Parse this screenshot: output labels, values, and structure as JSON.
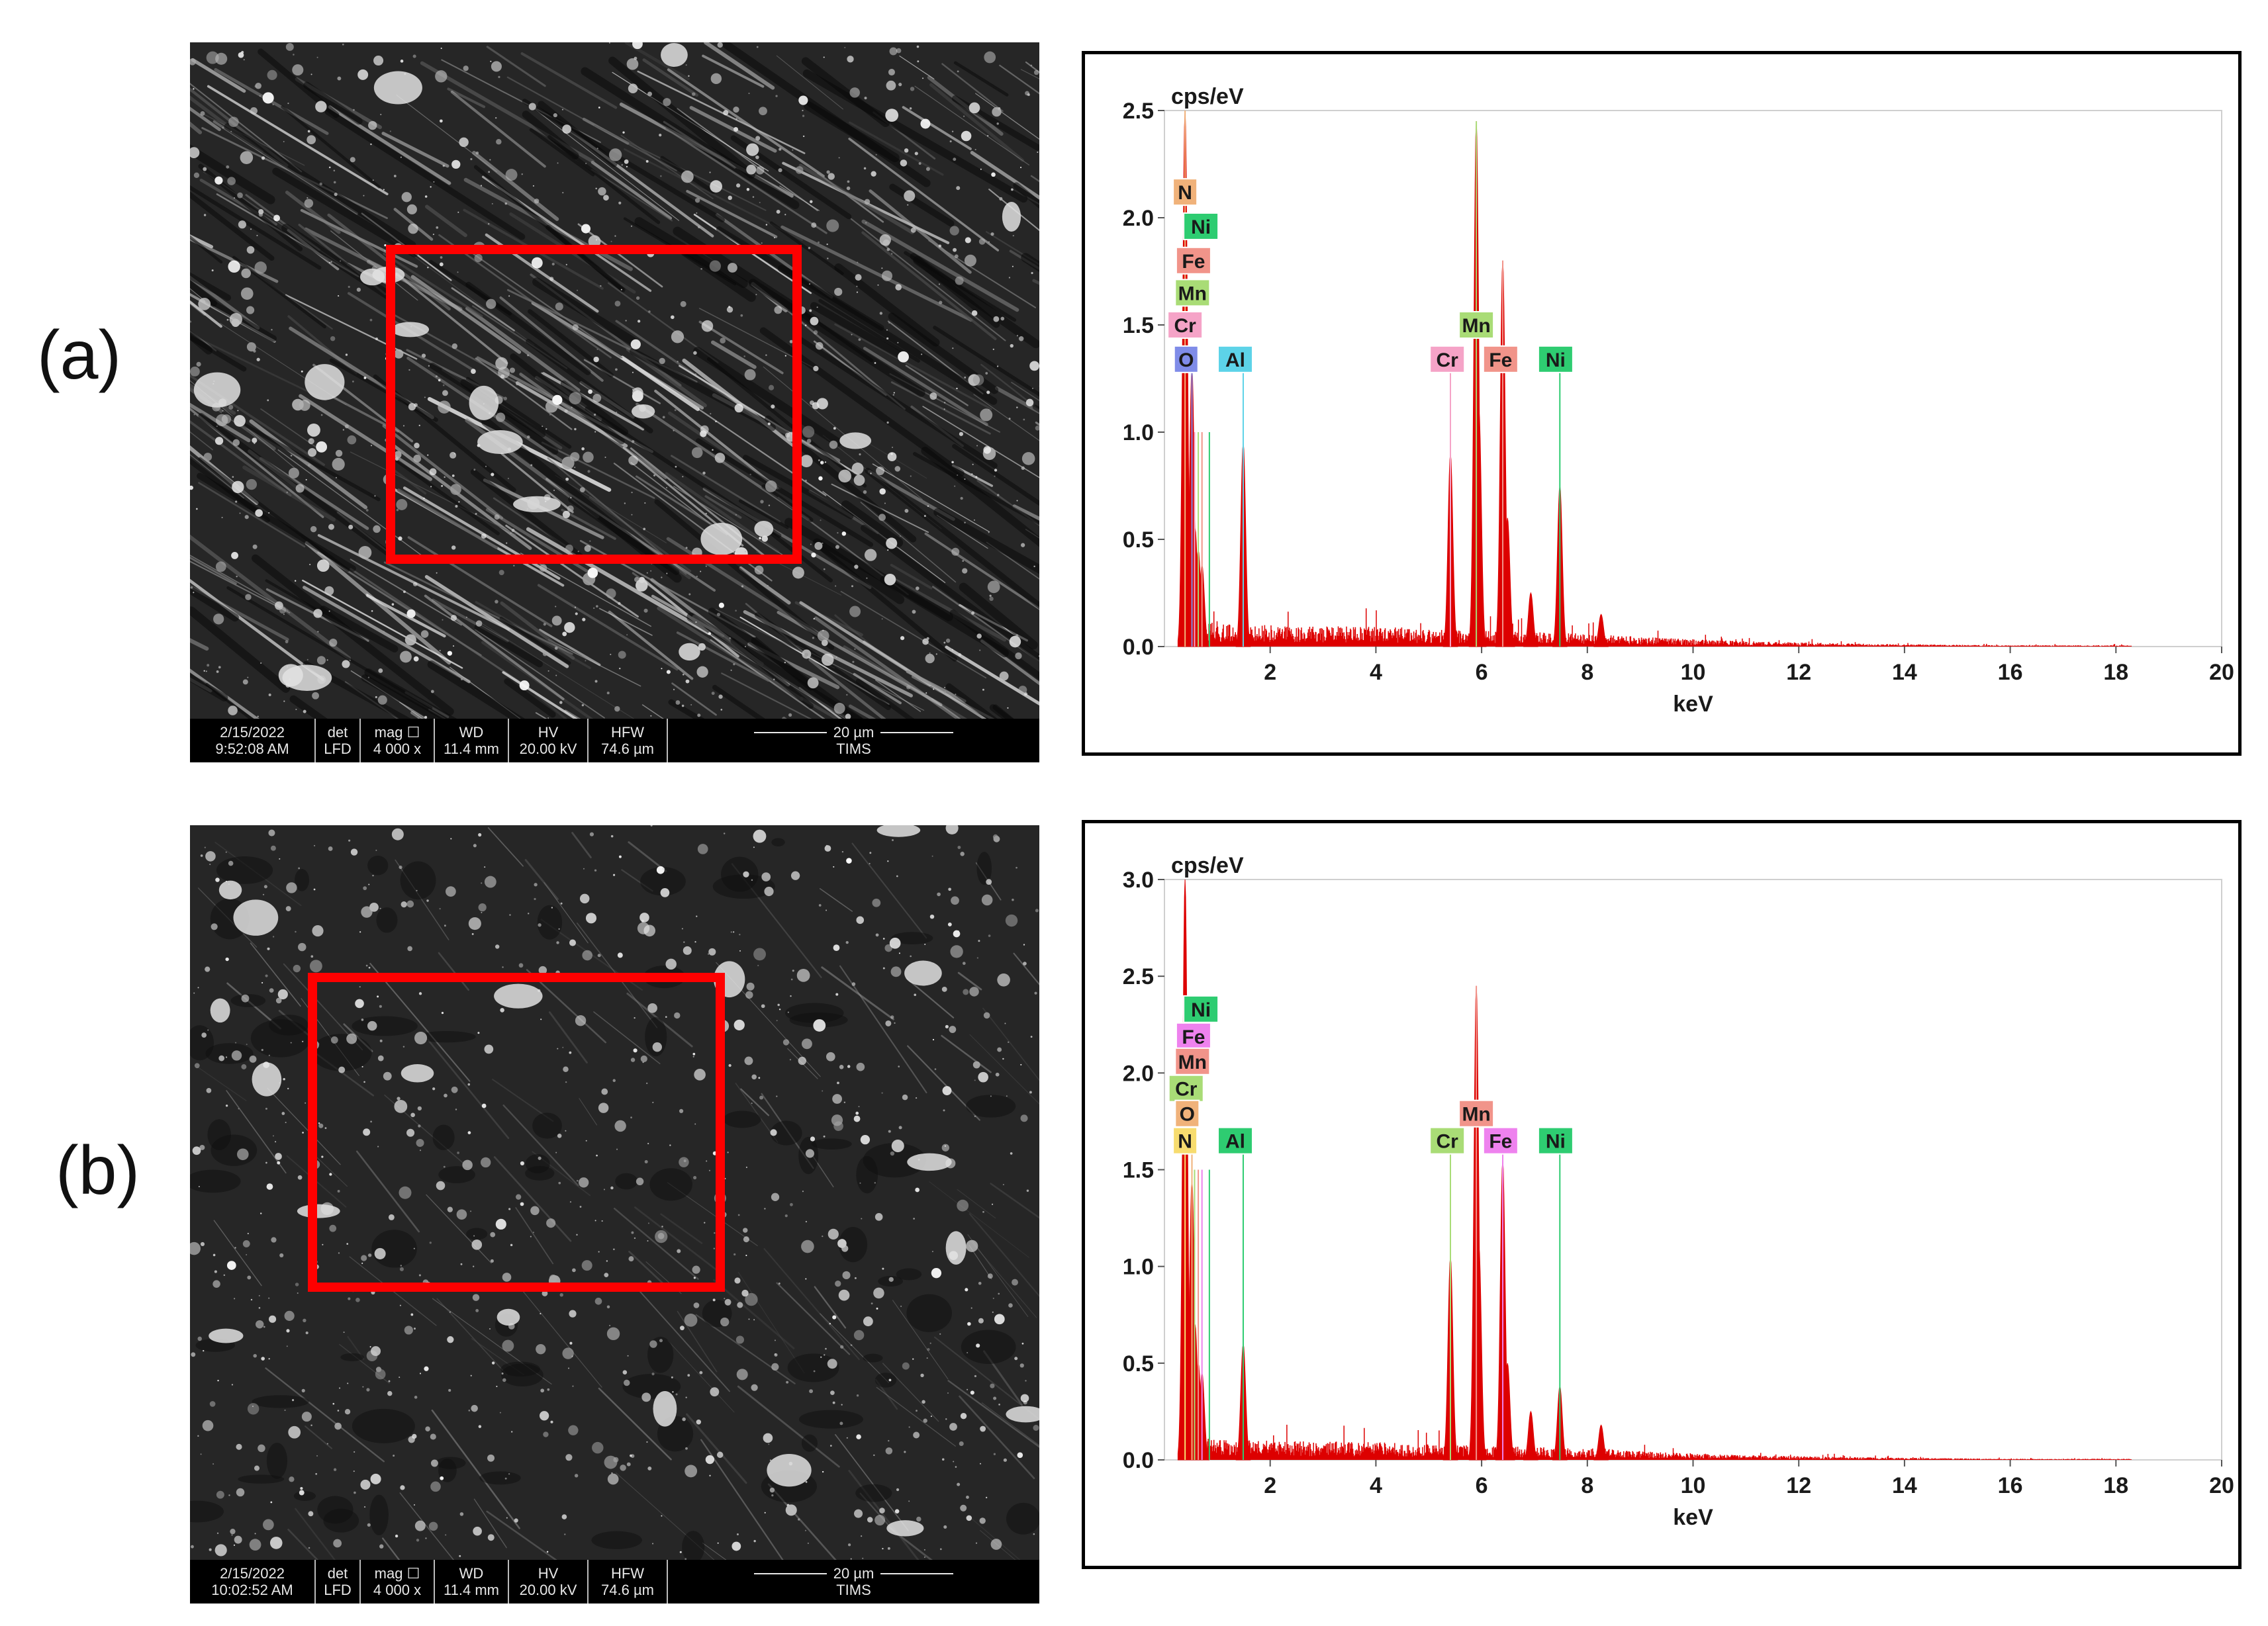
{
  "panels": [
    {
      "label": "(a)",
      "sem": {
        "bar_date": "2/15/2022",
        "bar_time": "9:52:08 AM",
        "bar_det_head": "det",
        "bar_det": "LFD",
        "bar_mag_head": "mag ☐",
        "bar_mag": "4 000 x",
        "bar_wd_head": "WD",
        "bar_wd": "11.4 mm",
        "bar_hv_head": "HV",
        "bar_hv": "20.00 kV",
        "bar_hfw_head": "HFW",
        "bar_hfw": "74.6 µm",
        "bar_scale": "20 µm",
        "bar_lab": "TIMS"
      }
    },
    {
      "label": "(b)",
      "sem": {
        "bar_date": "2/15/2022",
        "bar_time": "10:02:52 AM",
        "bar_det_head": "det",
        "bar_det": "LFD",
        "bar_mag_head": "mag ☐",
        "bar_mag": "4 000 x",
        "bar_wd_head": "WD",
        "bar_wd": "11.4 mm",
        "bar_hv_head": "HV",
        "bar_hv": "20.00 kV",
        "bar_hfw_head": "HFW",
        "bar_hfw": "74.6 µm",
        "bar_scale": "20 µm",
        "bar_lab": "TIMS"
      }
    }
  ],
  "chart_data": [
    {
      "type": "line",
      "ylabel": "cps/eV",
      "xlabel": "keV",
      "xlim": [
        0,
        20
      ],
      "ylim": [
        0,
        2.5
      ],
      "xticks": [
        2,
        4,
        6,
        8,
        10,
        12,
        14,
        16,
        18,
        20
      ],
      "xtick_labels": [
        "2",
        "4",
        "6",
        "8",
        "10",
        "12",
        "14",
        "16",
        "18",
        "20"
      ],
      "yticks": [
        0,
        0.5,
        1.0,
        1.5,
        2.0,
        2.5
      ],
      "ytick_labels": [
        "0.0",
        "0.5",
        "1.0",
        "1.5",
        "2.0",
        "2.5"
      ],
      "series_color": "#dd0000",
      "peaks": [
        {
          "x": 0.39,
          "y": 2.5
        },
        {
          "x": 0.52,
          "y": 1.3
        },
        {
          "x": 0.58,
          "y": 0.55
        },
        {
          "x": 0.64,
          "y": 0.45
        },
        {
          "x": 0.71,
          "y": 0.38
        },
        {
          "x": 1.49,
          "y": 0.95
        },
        {
          "x": 5.41,
          "y": 0.9
        },
        {
          "x": 5.9,
          "y": 2.45
        },
        {
          "x": 5.95,
          "y": 1.1
        },
        {
          "x": 6.4,
          "y": 1.8
        },
        {
          "x": 6.49,
          "y": 0.6
        },
        {
          "x": 6.93,
          "y": 0.25
        },
        {
          "x": 7.48,
          "y": 0.75
        },
        {
          "x": 8.26,
          "y": 0.15
        }
      ],
      "element_lines": [
        {
          "symbol": "N",
          "x": 0.39,
          "line_top": 2.5,
          "color": "#f0b27a"
        },
        {
          "symbol": "Ni",
          "x": 0.85,
          "line_top": 1.0,
          "color": "#2ecc71"
        },
        {
          "symbol": "Fe",
          "x": 0.71,
          "line_top": 1.0,
          "color": "#f1948a"
        },
        {
          "symbol": "Mn",
          "x": 0.64,
          "line_top": 1.0,
          "color": "#a9dc76"
        },
        {
          "symbol": "Cr",
          "x": 0.57,
          "line_top": 1.0,
          "color": "#f5a3c7"
        },
        {
          "symbol": "O",
          "x": 0.52,
          "line_top": 1.3,
          "color": "#7f8ce8"
        },
        {
          "symbol": "Al",
          "x": 1.49,
          "line_top": 1.3,
          "color": "#5dd3e8"
        },
        {
          "symbol": "Mn",
          "x": 5.9,
          "line_top": 2.45,
          "color": "#a9dc76"
        },
        {
          "symbol": "Cr",
          "x": 5.41,
          "line_top": 1.3,
          "color": "#f5a3c7"
        },
        {
          "symbol": "Fe",
          "x": 6.4,
          "line_top": 1.8,
          "color": "#f1948a"
        },
        {
          "symbol": "Ni",
          "x": 7.48,
          "line_top": 1.3,
          "color": "#2ecc71"
        }
      ],
      "label_stack": [
        {
          "symbol": "N",
          "x": 0.39,
          "y": 2.12,
          "color": "#f0b27a"
        },
        {
          "symbol": "Ni",
          "x": 0.69,
          "y": 1.96,
          "color": "#2ecc71"
        },
        {
          "symbol": "Fe",
          "x": 0.55,
          "y": 1.8,
          "color": "#f1948a"
        },
        {
          "symbol": "Mn",
          "x": 0.53,
          "y": 1.65,
          "color": "#a9dc76"
        },
        {
          "symbol": "Cr",
          "x": 0.39,
          "y": 1.5,
          "color": "#f5a3c7"
        },
        {
          "symbol": "O",
          "x": 0.41,
          "y": 1.34,
          "color": "#7f8ce8"
        },
        {
          "symbol": "Al",
          "x": 1.34,
          "y": 1.34,
          "color": "#5dd3e8"
        },
        {
          "symbol": "Mn",
          "x": 5.9,
          "y": 1.5,
          "color": "#a9dc76"
        },
        {
          "symbol": "Cr",
          "x": 5.35,
          "y": 1.34,
          "color": "#f5a3c7"
        },
        {
          "symbol": "Fe",
          "x": 6.36,
          "y": 1.34,
          "color": "#f1948a"
        },
        {
          "symbol": "Ni",
          "x": 7.4,
          "y": 1.34,
          "color": "#2ecc71"
        }
      ]
    },
    {
      "type": "line",
      "ylabel": "cps/eV",
      "xlabel": "keV",
      "xlim": [
        0,
        20
      ],
      "ylim": [
        0,
        3.0
      ],
      "xticks": [
        2,
        4,
        6,
        8,
        10,
        12,
        14,
        16,
        18,
        20
      ],
      "xtick_labels": [
        "2",
        "4",
        "6",
        "8",
        "10",
        "12",
        "14",
        "16",
        "18",
        "20"
      ],
      "yticks": [
        0,
        0.5,
        1.0,
        1.5,
        2.0,
        2.5,
        3.0
      ],
      "ytick_labels": [
        "0.0",
        "0.5",
        "1.0",
        "1.5",
        "2.0",
        "2.5",
        "3.0"
      ],
      "series_color": "#dd0000",
      "peaks": [
        {
          "x": 0.39,
          "y": 3.0
        },
        {
          "x": 0.52,
          "y": 1.45
        },
        {
          "x": 0.58,
          "y": 0.7
        },
        {
          "x": 0.64,
          "y": 0.5
        },
        {
          "x": 0.71,
          "y": 0.45
        },
        {
          "x": 1.49,
          "y": 0.6
        },
        {
          "x": 5.41,
          "y": 1.05
        },
        {
          "x": 5.9,
          "y": 2.45
        },
        {
          "x": 5.95,
          "y": 1.1
        },
        {
          "x": 6.4,
          "y": 1.55
        },
        {
          "x": 6.49,
          "y": 0.5
        },
        {
          "x": 6.93,
          "y": 0.25
        },
        {
          "x": 7.48,
          "y": 0.38
        },
        {
          "x": 8.26,
          "y": 0.18
        }
      ],
      "element_lines": [
        {
          "symbol": "N",
          "x": 0.39,
          "line_top": 1.6,
          "color": "#f7dc6f"
        },
        {
          "symbol": "O",
          "x": 0.52,
          "line_top": 1.6,
          "color": "#f0b27a"
        },
        {
          "symbol": "Cr",
          "x": 0.57,
          "line_top": 1.5,
          "color": "#a9dc76"
        },
        {
          "symbol": "Mn",
          "x": 0.64,
          "line_top": 1.5,
          "color": "#f1948a"
        },
        {
          "symbol": "Fe",
          "x": 0.71,
          "line_top": 1.5,
          "color": "#ee82ee"
        },
        {
          "symbol": "Ni",
          "x": 0.85,
          "line_top": 1.5,
          "color": "#2ecc71"
        },
        {
          "symbol": "Al",
          "x": 1.49,
          "line_top": 1.6,
          "color": "#2ecc71"
        },
        {
          "symbol": "Cr",
          "x": 5.41,
          "line_top": 1.6,
          "color": "#a9dc76"
        },
        {
          "symbol": "Mn",
          "x": 5.9,
          "line_top": 2.45,
          "color": "#f1948a"
        },
        {
          "symbol": "Fe",
          "x": 6.4,
          "line_top": 1.6,
          "color": "#ee82ee"
        },
        {
          "symbol": "Ni",
          "x": 7.48,
          "line_top": 1.6,
          "color": "#2ecc71"
        }
      ],
      "label_stack": [
        {
          "symbol": "Ni",
          "x": 0.69,
          "y": 2.33,
          "color": "#2ecc71"
        },
        {
          "symbol": "Fe",
          "x": 0.55,
          "y": 2.19,
          "color": "#ee82ee"
        },
        {
          "symbol": "Mn",
          "x": 0.53,
          "y": 2.06,
          "color": "#f1948a"
        },
        {
          "symbol": "Cr",
          "x": 0.41,
          "y": 1.92,
          "color": "#a9dc76"
        },
        {
          "symbol": "O",
          "x": 0.43,
          "y": 1.79,
          "color": "#f0b27a"
        },
        {
          "symbol": "N",
          "x": 0.39,
          "y": 1.65,
          "color": "#f7dc6f"
        },
        {
          "symbol": "Al",
          "x": 1.34,
          "y": 1.65,
          "color": "#2ecc71"
        },
        {
          "symbol": "Mn",
          "x": 5.9,
          "y": 1.79,
          "color": "#f1948a"
        },
        {
          "symbol": "Cr",
          "x": 5.35,
          "y": 1.65,
          "color": "#a9dc76"
        },
        {
          "symbol": "Fe",
          "x": 6.36,
          "y": 1.65,
          "color": "#ee82ee"
        },
        {
          "symbol": "Ni",
          "x": 7.4,
          "y": 1.65,
          "color": "#2ecc71"
        }
      ]
    }
  ]
}
